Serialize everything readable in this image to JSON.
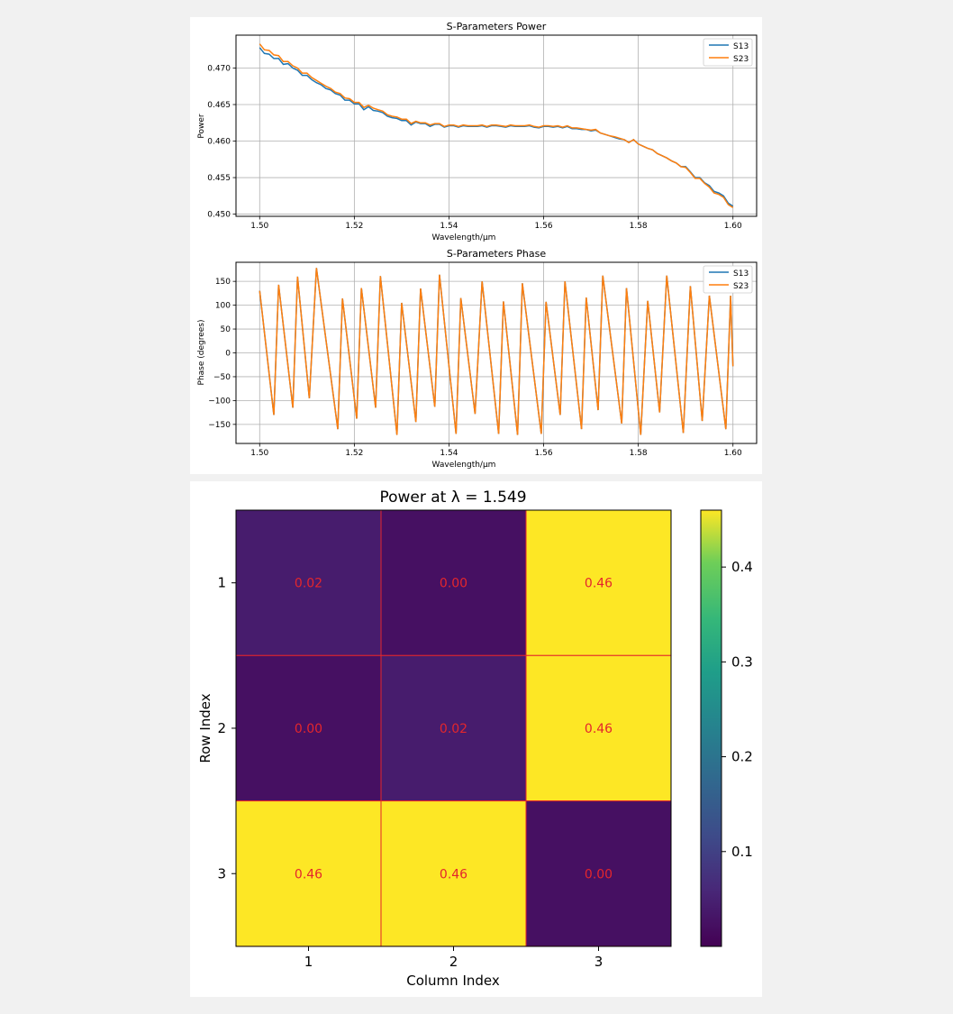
{
  "colors": {
    "s13": "#1f77b4",
    "s23": "#ff7f0e",
    "grid": "#b0b0b0",
    "annotation": "#e4262c",
    "cell_line": "#e4262c"
  },
  "chart_data": [
    {
      "type": "line",
      "title": "S-Parameters Power",
      "xlabel": "Wavelength/μm",
      "ylabel": "Power",
      "xlim": [
        1.495,
        1.605
      ],
      "ylim": [
        0.4497,
        0.4745
      ],
      "xticks": [
        "1.50",
        "1.52",
        "1.54",
        "1.56",
        "1.58",
        "1.60"
      ],
      "yticks": [
        "0.450",
        "0.455",
        "0.460",
        "0.465",
        "0.470"
      ],
      "grid": true,
      "legend_position": "top-right",
      "x_start": 1.5,
      "x_step": 0.001,
      "series": [
        {
          "name": "S13",
          "values": [
            0.4728,
            0.472,
            0.4719,
            0.4713,
            0.4713,
            0.4705,
            0.4706,
            0.47,
            0.4697,
            0.469,
            0.469,
            0.4684,
            0.468,
            0.4677,
            0.4672,
            0.467,
            0.4665,
            0.4663,
            0.4656,
            0.4656,
            0.4651,
            0.4651,
            0.4643,
            0.4647,
            0.4642,
            0.4641,
            0.4639,
            0.4634,
            0.4632,
            0.4631,
            0.4628,
            0.4628,
            0.4622,
            0.4626,
            0.4624,
            0.4624,
            0.462,
            0.4623,
            0.4623,
            0.4619,
            0.4621,
            0.4621,
            0.4619,
            0.4621,
            0.462,
            0.462,
            0.462,
            0.4621,
            0.4619,
            0.4621,
            0.4621,
            0.462,
            0.4619,
            0.4621,
            0.462,
            0.462,
            0.462,
            0.4621,
            0.4619,
            0.4618,
            0.462,
            0.462,
            0.4619,
            0.462,
            0.4618,
            0.462,
            0.4617,
            0.4617,
            0.4616,
            0.4616,
            0.4614,
            0.4615,
            0.4611,
            0.4609,
            0.4607,
            0.4605,
            0.4603,
            0.4602,
            0.4598,
            0.4602,
            0.4596,
            0.4593,
            0.459,
            0.4588,
            0.4583,
            0.458,
            0.4577,
            0.4573,
            0.457,
            0.4565,
            0.4565,
            0.4558,
            0.455,
            0.455,
            0.4543,
            0.4539,
            0.4531,
            0.4529,
            0.4525,
            0.4515,
            0.4511
          ]
        },
        {
          "name": "S23",
          "values": [
            0.4733,
            0.4725,
            0.4724,
            0.4718,
            0.4717,
            0.4709,
            0.4709,
            0.4703,
            0.47,
            0.4693,
            0.4693,
            0.4687,
            0.4683,
            0.4679,
            0.4675,
            0.4672,
            0.4667,
            0.4665,
            0.4659,
            0.4658,
            0.4653,
            0.4653,
            0.4646,
            0.4649,
            0.4645,
            0.4643,
            0.4641,
            0.4636,
            0.4634,
            0.4633,
            0.463,
            0.463,
            0.4624,
            0.4627,
            0.4625,
            0.4625,
            0.4622,
            0.4624,
            0.4624,
            0.462,
            0.4622,
            0.4622,
            0.462,
            0.4622,
            0.4621,
            0.4621,
            0.4621,
            0.4622,
            0.462,
            0.4622,
            0.4622,
            0.4621,
            0.462,
            0.4622,
            0.4621,
            0.4621,
            0.4621,
            0.4622,
            0.462,
            0.4619,
            0.4621,
            0.4621,
            0.462,
            0.4621,
            0.4619,
            0.4621,
            0.4618,
            0.4618,
            0.4617,
            0.4616,
            0.4615,
            0.4616,
            0.4611,
            0.4609,
            0.4607,
            0.4606,
            0.4604,
            0.4602,
            0.4598,
            0.4602,
            0.4596,
            0.4593,
            0.459,
            0.4588,
            0.4583,
            0.458,
            0.4577,
            0.4573,
            0.457,
            0.4565,
            0.4564,
            0.4557,
            0.4549,
            0.4549,
            0.4542,
            0.4537,
            0.4529,
            0.4527,
            0.4523,
            0.4513,
            0.4509
          ]
        }
      ]
    },
    {
      "type": "line",
      "title": "S-Parameters Phase",
      "xlabel": "Wavelength/μm",
      "ylabel": "Phase (degrees)",
      "xlim": [
        1.495,
        1.605
      ],
      "ylim": [
        -190,
        190
      ],
      "xticks": [
        "1.50",
        "1.52",
        "1.54",
        "1.56",
        "1.58",
        "1.60"
      ],
      "yticks": [
        "150",
        "100",
        "50",
        "0",
        "−50",
        "−100",
        "−150"
      ],
      "grid": true,
      "legend_position": "top-right",
      "series_names": [
        "S13",
        "S23"
      ],
      "x": [
        1.5,
        1.503,
        1.504,
        1.507,
        1.508,
        1.5105,
        1.512,
        1.5165,
        1.5175,
        1.5205,
        1.5215,
        1.5245,
        1.5255,
        1.529,
        1.53,
        1.533,
        1.534,
        1.537,
        1.538,
        1.5415,
        1.5425,
        1.5455,
        1.547,
        1.5505,
        1.5515,
        1.5545,
        1.5555,
        1.5595,
        1.5605,
        1.5635,
        1.5645,
        1.568,
        1.569,
        1.5715,
        1.5725,
        1.5765,
        1.5775,
        1.5805,
        1.582,
        1.5845,
        1.586,
        1.5895,
        1.591,
        1.5935,
        1.595,
        1.5985,
        1.5995,
        1.6
      ],
      "y": [
        130,
        -130,
        143,
        -115,
        160,
        -95,
        178,
        -160,
        114,
        -138,
        136,
        -115,
        161,
        -172,
        105,
        -145,
        135,
        -113,
        164,
        -170,
        115,
        -128,
        150,
        -170,
        108,
        -172,
        146,
        -170,
        107,
        -130,
        150,
        -160,
        116,
        -120,
        162,
        -148,
        136,
        -172,
        109,
        -125,
        162,
        -168,
        140,
        -143,
        120,
        -160,
        120,
        -28
      ]
    },
    {
      "type": "heatmap",
      "title": "Power at λ = 1.549",
      "xlabel": "Column Index",
      "ylabel": "Row Index",
      "xticks": [
        "1",
        "2",
        "3"
      ],
      "yticks": [
        "1",
        "2",
        "3"
      ],
      "values": [
        [
          0.02,
          0.0,
          0.46
        ],
        [
          0.0,
          0.02,
          0.46
        ],
        [
          0.46,
          0.46,
          0.0
        ]
      ],
      "labels": [
        [
          "0.02",
          "0.00",
          "0.46"
        ],
        [
          "0.00",
          "0.02",
          "0.46"
        ],
        [
          "0.46",
          "0.46",
          "0.00"
        ]
      ],
      "colormap": "viridis",
      "clim": [
        0.0,
        0.46
      ],
      "colorbar_ticks": [
        "0.1",
        "0.2",
        "0.3",
        "0.4"
      ]
    }
  ]
}
